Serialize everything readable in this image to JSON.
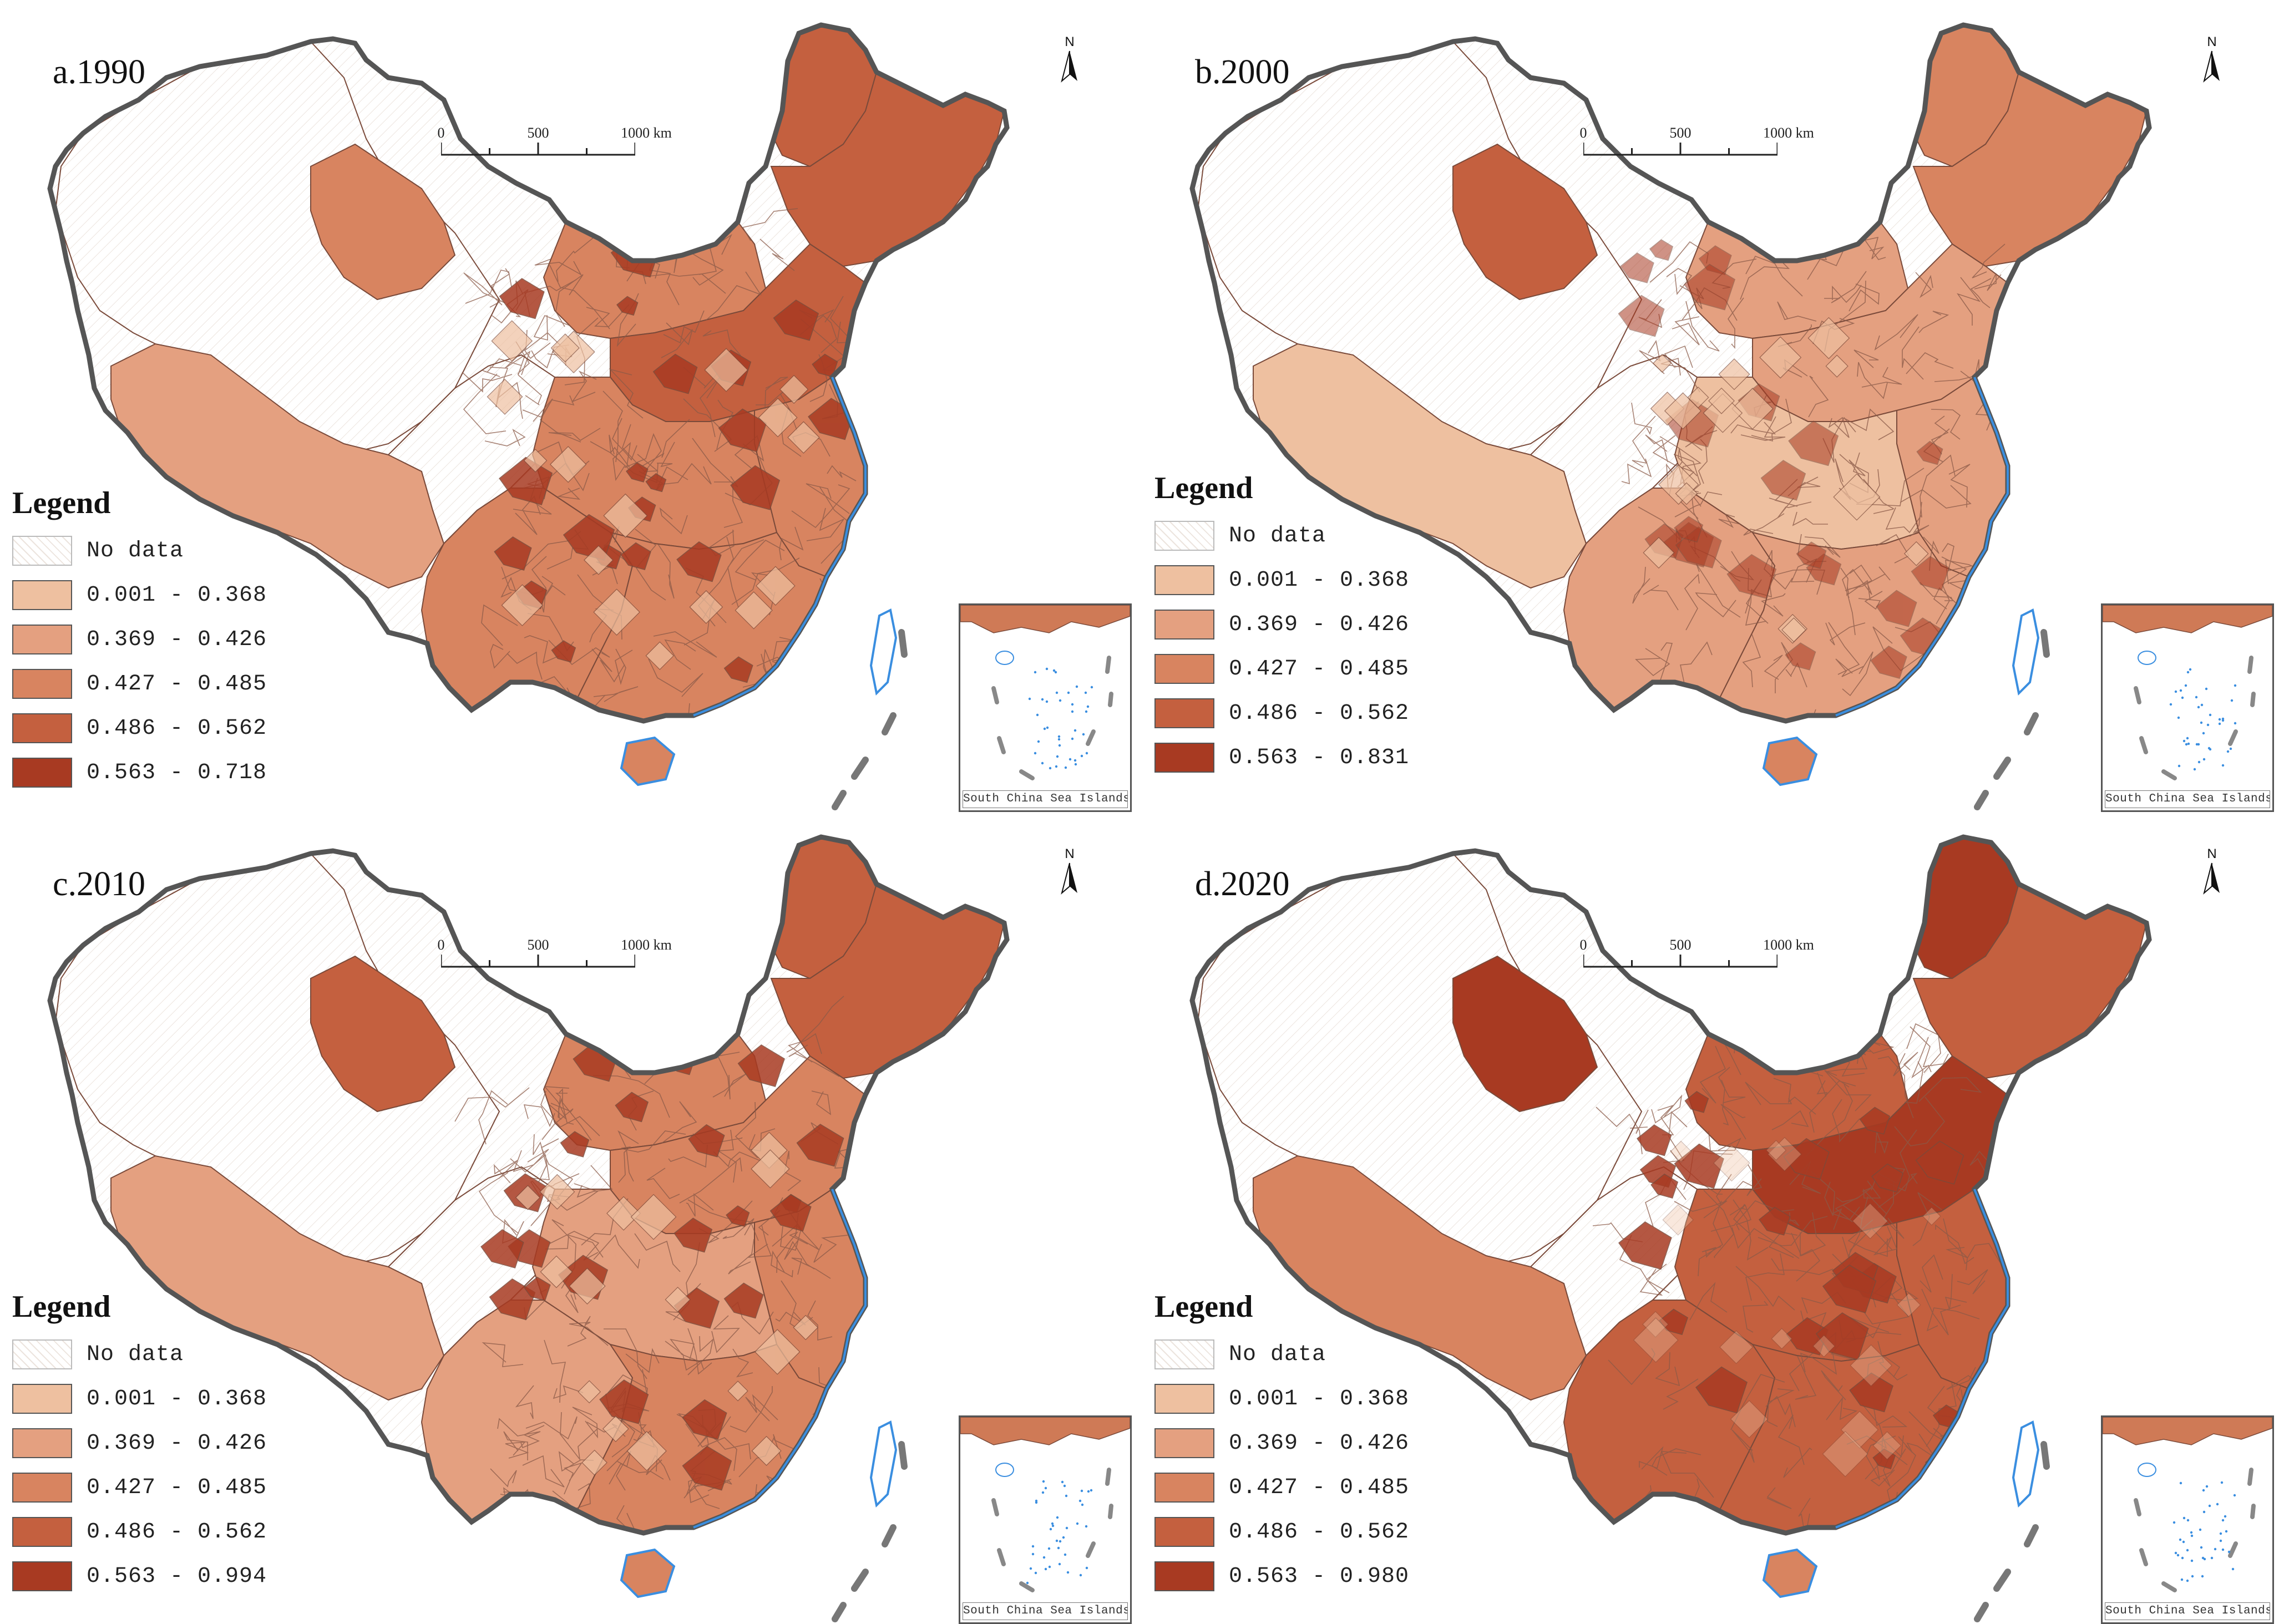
{
  "figure": {
    "colors": {
      "nodata": "#ffffff",
      "c1": "#eec0a0",
      "c2": "#e4a080",
      "c3": "#d88460",
      "c4": "#c4603f",
      "c5": "#a83a22",
      "coast": "#3a8ee0",
      "border": "#666666"
    }
  },
  "panels": [
    {
      "id": "a",
      "title": "a.1990",
      "legend": {
        "title": "Legend",
        "items": [
          {
            "label": "No data",
            "color": "nodata"
          },
          {
            "label": "0.001 - 0.368",
            "color": "c1"
          },
          {
            "label": "0.369 - 0.426",
            "color": "c2"
          },
          {
            "label": "0.427 - 0.485",
            "color": "c3"
          },
          {
            "label": "0.486 - 0.562",
            "color": "c4"
          },
          {
            "label": "0.563 - 0.718",
            "color": "c5"
          }
        ]
      },
      "scale": {
        "ticks": [
          "0",
          "500",
          "1000 km"
        ]
      },
      "north": "N",
      "inset_label": "South China Sea Islands",
      "regions": {
        "northwest": "nodata",
        "tibet": "c2",
        "xinjiang_north": "c3",
        "qinghai": "nodata",
        "inner_mongolia": "c3",
        "northeast": "c4",
        "north_china": "c4",
        "central": "c3",
        "southwest": "c3",
        "south": "c3",
        "east": "c3",
        "far_north": "c4"
      }
    },
    {
      "id": "b",
      "title": "b.2000",
      "legend": {
        "title": "Legend",
        "items": [
          {
            "label": "No data",
            "color": "nodata"
          },
          {
            "label": "0.001 - 0.368",
            "color": "c1"
          },
          {
            "label": "0.369 - 0.426",
            "color": "c2"
          },
          {
            "label": "0.427 - 0.485",
            "color": "c3"
          },
          {
            "label": "0.486 - 0.562",
            "color": "c4"
          },
          {
            "label": "0.563 - 0.831",
            "color": "c5"
          }
        ]
      },
      "scale": {
        "ticks": [
          "0",
          "500",
          "1000 km"
        ]
      },
      "north": "N",
      "inset_label": "South China Sea Islands",
      "regions": {
        "northwest": "nodata",
        "tibet": "c1",
        "xinjiang_north": "c4",
        "qinghai": "nodata",
        "inner_mongolia": "c2",
        "northeast": "c3",
        "north_china": "c2",
        "central": "c1",
        "southwest": "c2",
        "south": "c2",
        "east": "c2",
        "far_north": "c3"
      }
    },
    {
      "id": "c",
      "title": "c.2010",
      "legend": {
        "title": "Legend",
        "items": [
          {
            "label": "No data",
            "color": "nodata"
          },
          {
            "label": "0.001 - 0.368",
            "color": "c1"
          },
          {
            "label": "0.369 - 0.426",
            "color": "c2"
          },
          {
            "label": "0.427 - 0.485",
            "color": "c3"
          },
          {
            "label": "0.486 - 0.562",
            "color": "c4"
          },
          {
            "label": "0.563 - 0.994",
            "color": "c5"
          }
        ]
      },
      "scale": {
        "ticks": [
          "0",
          "500",
          "1000 km"
        ]
      },
      "north": "N",
      "inset_label": "South China Sea Islands",
      "regions": {
        "northwest": "nodata",
        "tibet": "c2",
        "xinjiang_north": "c4",
        "qinghai": "nodata",
        "inner_mongolia": "c3",
        "northeast": "c4",
        "north_china": "c3",
        "central": "c2",
        "southwest": "c2",
        "south": "c3",
        "east": "c3",
        "far_north": "c4"
      }
    },
    {
      "id": "d",
      "title": "d.2020",
      "legend": {
        "title": "Legend",
        "items": [
          {
            "label": "No data",
            "color": "nodata"
          },
          {
            "label": "0.001 - 0.368",
            "color": "c1"
          },
          {
            "label": "0.369 - 0.426",
            "color": "c2"
          },
          {
            "label": "0.427 - 0.485",
            "color": "c3"
          },
          {
            "label": "0.486 - 0.562",
            "color": "c4"
          },
          {
            "label": "0.563 - 0.980",
            "color": "c5"
          }
        ]
      },
      "scale": {
        "ticks": [
          "0",
          "500",
          "1000 km"
        ]
      },
      "north": "N",
      "inset_label": "South China Sea Islands",
      "regions": {
        "northwest": "nodata",
        "tibet": "c3",
        "xinjiang_north": "c5",
        "qinghai": "nodata",
        "inner_mongolia": "c4",
        "northeast": "c4",
        "north_china": "c5",
        "central": "c4",
        "southwest": "c4",
        "south": "c4",
        "east": "c4",
        "far_north": "c5"
      }
    }
  ]
}
